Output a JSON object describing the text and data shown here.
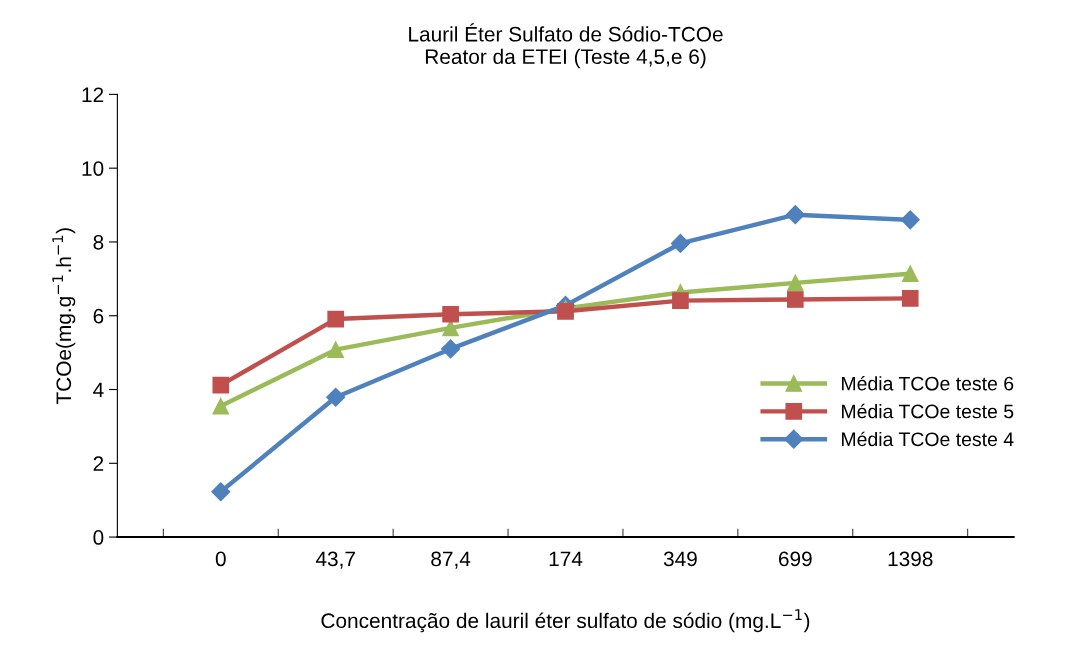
{
  "chart_data": {
    "type": "line",
    "title": "Lauril Éter Sulfato de Sódio-TCOe\nReator da ETEI (Teste 4,5,e 6)",
    "xlabel": "Concentração de lauril éter sulfato de sódio (mg.L$^{−1}$)",
    "ylabel": "TCOe(mg.g$^{−1}$.h$^{−1}$)",
    "categories": [
      "0",
      "43,7",
      "87,4",
      "174",
      "349",
      "699",
      "1398"
    ],
    "series": [
      {
        "name": "Média TCOe teste 6",
        "color": "#9bbb59",
        "marker": "triangle",
        "values": [
          3.55,
          5.08,
          5.67,
          6.2,
          6.63,
          6.89,
          7.14
        ]
      },
      {
        "name": "Média TCOe teste 5",
        "color": "#c0504d",
        "marker": "square",
        "values": [
          4.12,
          5.91,
          6.04,
          6.12,
          6.41,
          6.44,
          6.47
        ]
      },
      {
        "name": "Média TCOe teste 4",
        "color": "#4f81bd",
        "marker": "diamond",
        "values": [
          1.23,
          3.79,
          5.1,
          6.28,
          7.96,
          8.74,
          8.6
        ]
      }
    ],
    "ylim": [
      0,
      12
    ],
    "yticks": [
      0,
      2,
      4,
      6,
      8,
      10,
      12
    ],
    "grid": false,
    "legend": "right",
    "line_style": "solid"
  }
}
